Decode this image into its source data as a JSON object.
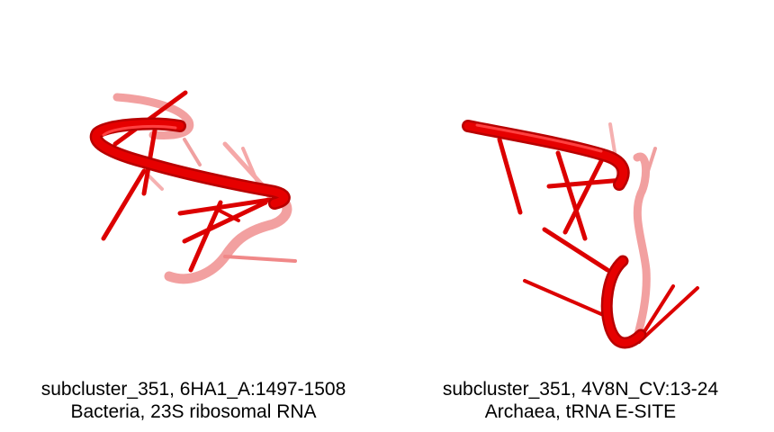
{
  "structures": [
    {
      "line1": "subcluster_351, 6HA1_A:1497-1508",
      "line2": "Bacteria, 23S ribosomal RNA"
    },
    {
      "line1": "subcluster_351, 4V8N_CV:13-24",
      "line2": "Archaea, tRNA E-SITE"
    }
  ],
  "colors": {
    "backbone": "#e00000",
    "faded": "#f08080",
    "background": "#ffffff"
  }
}
